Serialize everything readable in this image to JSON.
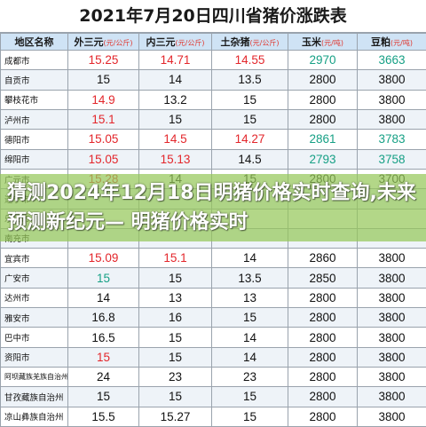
{
  "title": "2021年7月20日四川省猪价涨跌表",
  "headers": [
    {
      "name": "地区名称",
      "unit": ""
    },
    {
      "name": "外三元",
      "unit": "(元/公斤)"
    },
    {
      "name": "内三元",
      "unit": "(元/公斤)"
    },
    {
      "name": "土杂猪",
      "unit": "(元/公斤)"
    },
    {
      "name": "玉米",
      "unit": "(元/吨)"
    },
    {
      "name": "豆粕",
      "unit": "(元/吨)"
    }
  ],
  "rows": [
    [
      "成都市",
      "15.25",
      "14.71",
      "14.55",
      "2970",
      "3663"
    ],
    [
      "自贡市",
      "15",
      "14",
      "13.5",
      "2800",
      "3800"
    ],
    [
      "攀枝花市",
      "14.9",
      "13.2",
      "15",
      "2800",
      "3800"
    ],
    [
      "泸州市",
      "15.1",
      "15",
      "15",
      "2800",
      "3800"
    ],
    [
      "德阳市",
      "15.05",
      "14.5",
      "14.27",
      "2861",
      "3783"
    ],
    [
      "绵阳市",
      "15.05",
      "15.13",
      "14.5",
      "2793",
      "3758"
    ],
    [
      "广元市",
      "15.28",
      "14",
      "15",
      "2800",
      "3700"
    ],
    [
      "遂宁市",
      "",
      "",
      "",
      "",
      ""
    ],
    [
      "乐山市",
      "",
      "",
      "",
      "",
      ""
    ],
    [
      "南充市",
      "",
      "",
      "",
      "",
      ""
    ],
    [
      "宜宾市",
      "15.09",
      "15.1",
      "14",
      "2860",
      "3800"
    ],
    [
      "广安市",
      "15",
      "15",
      "13.5",
      "2850",
      "3800"
    ],
    [
      "达州市",
      "14",
      "13",
      "13",
      "2800",
      "3800"
    ],
    [
      "雅安市",
      "16.8",
      "16",
      "15",
      "2800",
      "3800"
    ],
    [
      "巴中市",
      "16.5",
      "15",
      "14",
      "2800",
      "3800"
    ],
    [
      "资阳市",
      "15",
      "15",
      "14",
      "2800",
      "3800"
    ],
    [
      "阿坝藏族羌族自治州",
      "24",
      "23",
      "23",
      "2800",
      "3800"
    ],
    [
      "甘孜藏族自治州",
      "15",
      "15",
      "15",
      "2800",
      "3800"
    ],
    [
      "凉山彝族自治州",
      "15.5",
      "15.27",
      "15",
      "2800",
      "3800"
    ]
  ],
  "row_colors": [
    [
      "black",
      "red",
      "red",
      "red",
      "teal",
      "teal"
    ],
    [
      "black",
      "black",
      "black",
      "black",
      "black",
      "black"
    ],
    [
      "black",
      "red",
      "black",
      "black",
      "black",
      "black"
    ],
    [
      "black",
      "red",
      "black",
      "black",
      "black",
      "black"
    ],
    [
      "black",
      "red",
      "red",
      "red",
      "teal",
      "teal"
    ],
    [
      "black",
      "red",
      "red",
      "black",
      "teal",
      "teal"
    ],
    [
      "black",
      "red",
      "black",
      "black",
      "black",
      "black"
    ],
    [
      "black",
      "black",
      "black",
      "black",
      "black",
      "black"
    ],
    [
      "black",
      "black",
      "black",
      "black",
      "black",
      "black"
    ],
    [
      "black",
      "black",
      "black",
      "black",
      "black",
      "black"
    ],
    [
      "black",
      "red",
      "red",
      "black",
      "black",
      "black"
    ],
    [
      "black",
      "teal",
      "black",
      "black",
      "black",
      "black"
    ],
    [
      "black",
      "black",
      "black",
      "black",
      "black",
      "black"
    ],
    [
      "black",
      "black",
      "black",
      "black",
      "black",
      "black"
    ],
    [
      "black",
      "black",
      "black",
      "black",
      "black",
      "black"
    ],
    [
      "black",
      "red",
      "black",
      "black",
      "black",
      "black"
    ],
    [
      "black",
      "black",
      "black",
      "black",
      "black",
      "black"
    ],
    [
      "black",
      "black",
      "black",
      "black",
      "black",
      "black"
    ],
    [
      "black",
      "black",
      "black",
      "black",
      "black",
      "black"
    ]
  ],
  "colors": {
    "red": "#e3262b",
    "teal": "#16a085",
    "black": "#111111",
    "header_bg": "#cfe3f5"
  },
  "banner": {
    "text": "猜测2024年12月18日明猪价格实时查询,未来预测新纪元— 明猪价格实时"
  }
}
